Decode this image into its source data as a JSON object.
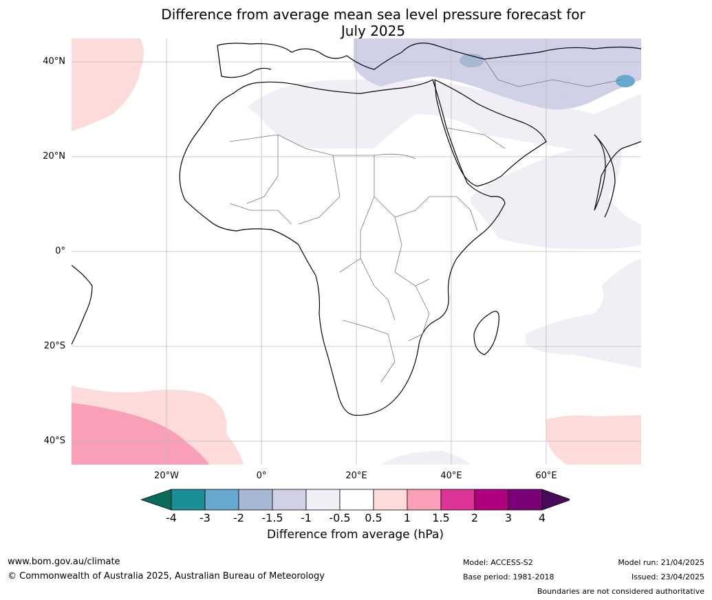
{
  "title_line1": "Difference from average mean sea level pressure forecast for",
  "title_line2": "July 2025",
  "lat_ticks": [
    {
      "label": "40°N",
      "lat": 40
    },
    {
      "label": "20°N",
      "lat": 20
    },
    {
      "label": "0°",
      "lat": 0
    },
    {
      "label": "20°S",
      "lat": -20
    },
    {
      "label": "40°S",
      "lat": -40
    }
  ],
  "lon_ticks": [
    {
      "label": "20°W",
      "lon": -20
    },
    {
      "label": "0°",
      "lon": 0
    },
    {
      "label": "20°E",
      "lon": 20
    },
    {
      "label": "40°E",
      "lon": 40
    },
    {
      "label": "60°E",
      "lon": 60
    }
  ],
  "colorbar": {
    "title": "Difference from average (hPa)",
    "tick_labels": [
      "-4",
      "-3",
      "-2",
      "-1.5",
      "-1",
      "-0.5",
      "0.5",
      "1",
      "1.5",
      "2",
      "3",
      "4"
    ],
    "under_color": "#0b6b5a",
    "over_color": "#4a0a5c",
    "colors": [
      "#1a8f96",
      "#67a9cf",
      "#a6b8d4",
      "#d0d1e6",
      "#f1eef6",
      "#ffffff",
      "#fddbdb",
      "#f9a0b8",
      "#dd3497",
      "#ae017e",
      "#7a0177"
    ]
  },
  "footer": {
    "website": "www.bom.gov.au/climate",
    "copyright": "© Commonwealth of Australia 2025, Australian Bureau of Meteorology",
    "model": "Model: ACCESS-S2",
    "base_period": "Base period: 1981-2018",
    "model_run": "Model run: 21/04/2025",
    "issued": "Issued: 23/04/2025",
    "disclaimer": "Boundaries are not considered authoritative"
  }
}
